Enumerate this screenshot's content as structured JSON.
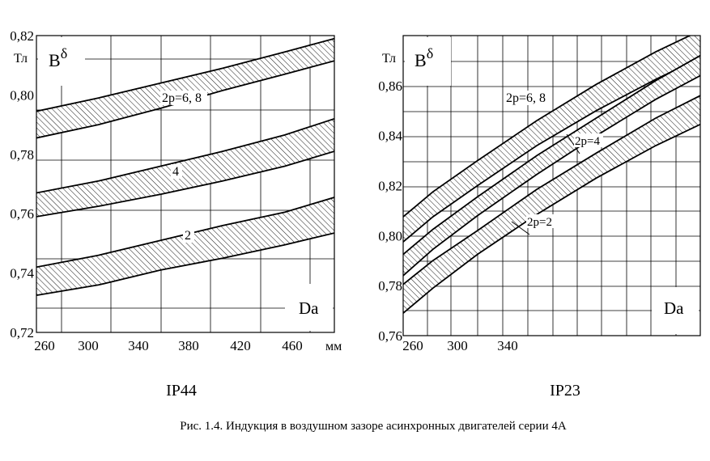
{
  "caption": "Рис. 1.4. Индукция в воздушном зазоре асинхронных двигателей серии 4А",
  "chart_data": [
    {
      "type": "area",
      "title": "IP44",
      "y_unit": "Тл",
      "y_symbol": "B",
      "y_symbol_sub": "δ",
      "x_symbol": "Da",
      "x_unit": "мм",
      "xlim": [
        250,
        490
      ],
      "ylim": [
        0.72,
        0.82
      ],
      "x_ticks": [
        "260",
        "300",
        "340",
        "380",
        "420",
        "460"
      ],
      "y_ticks": [
        "0,72",
        "0,74",
        "0,76",
        "0,78",
        "0,80",
        "0,82"
      ],
      "grid": true,
      "series": [
        {
          "name": "2р=6, 8",
          "x": [
            250,
            300,
            350,
            400,
            450,
            490
          ],
          "upper": [
            0.7945,
            0.799,
            0.804,
            0.809,
            0.8145,
            0.819
          ],
          "lower": [
            0.7855,
            0.79,
            0.7955,
            0.8015,
            0.807,
            0.8115
          ]
        },
        {
          "name": "4",
          "x": [
            250,
            300,
            350,
            400,
            450,
            490
          ],
          "upper": [
            0.767,
            0.771,
            0.776,
            0.781,
            0.7865,
            0.792
          ],
          "lower": [
            0.759,
            0.7625,
            0.7665,
            0.771,
            0.776,
            0.781
          ]
        },
        {
          "name": "2",
          "x": [
            250,
            300,
            350,
            400,
            450,
            490
          ],
          "upper": [
            0.742,
            0.746,
            0.751,
            0.756,
            0.7605,
            0.7655
          ],
          "lower": [
            0.7325,
            0.736,
            0.741,
            0.745,
            0.7495,
            0.7535
          ]
        }
      ]
    },
    {
      "type": "area",
      "title": "IP23",
      "y_unit": "Тл",
      "y_symbol": "B",
      "y_symbol_sub": "δ",
      "x_symbol": "Da",
      "xlim": [
        250,
        450
      ],
      "ylim": [
        0.76,
        0.88
      ],
      "x_ticks": [
        "260",
        "300",
        "340"
      ],
      "y_ticks": [
        "0,76",
        "0,78",
        "0,80",
        "0,82",
        "0,84",
        "0,86"
      ],
      "grid": true,
      "series": [
        {
          "name": "2р=6, 8",
          "x": [
            250,
            270,
            300,
            340,
            380,
            420,
            450
          ],
          "upper": [
            0.8075,
            0.8175,
            0.83,
            0.846,
            0.8605,
            0.8735,
            0.882
          ],
          "lower": [
            0.7975,
            0.8075,
            0.82,
            0.836,
            0.85,
            0.8625,
            0.871
          ]
        },
        {
          "name": "2р=4",
          "x": [
            250,
            270,
            300,
            340,
            380,
            420,
            450
          ],
          "upper": [
            0.7925,
            0.8025,
            0.8155,
            0.832,
            0.847,
            0.862,
            0.872
          ],
          "lower": [
            0.784,
            0.7945,
            0.808,
            0.8245,
            0.84,
            0.8545,
            0.864
          ]
        },
        {
          "name": "2р=2",
          "x": [
            250,
            270,
            300,
            340,
            380,
            420,
            450
          ],
          "upper": [
            0.7805,
            0.79,
            0.802,
            0.8185,
            0.833,
            0.847,
            0.856
          ],
          "lower": [
            0.769,
            0.779,
            0.7925,
            0.8085,
            0.823,
            0.836,
            0.8445
          ]
        }
      ]
    }
  ]
}
